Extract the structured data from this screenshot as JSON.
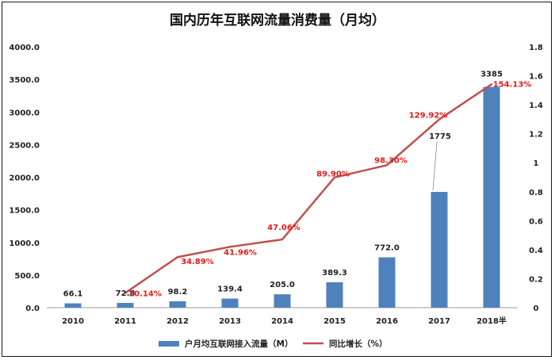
{
  "chart_data": {
    "type": "bar",
    "title": "国内历年互联网流量消费量（月均）",
    "categories": [
      "2010",
      "2011",
      "2012",
      "2013",
      "2014",
      "2015",
      "2016",
      "2017",
      "2018半"
    ],
    "series": [
      {
        "name": "户月均互联网接入流量（M）",
        "type": "bar",
        "axis": "left",
        "color": "#4f81bd",
        "values": [
          66.1,
          72.8,
          98.2,
          139.4,
          205.0,
          389.3,
          772.0,
          1775,
          3385
        ],
        "labels": [
          "66.1",
          "72.8",
          "98.2",
          "139.4",
          "205.0",
          "389.3",
          "772.0",
          "1775",
          "3385"
        ]
      },
      {
        "name": "同比增长（%）",
        "type": "line",
        "axis": "right",
        "color": "#c0504d",
        "values": [
          null,
          0.1014,
          0.3489,
          0.4196,
          0.4706,
          0.899,
          0.983,
          1.2992,
          1.5413
        ],
        "labels": [
          null,
          "10.14%",
          "34.89%",
          "41.96%",
          "47.06%",
          "89.90%",
          "98.30%",
          "129.92%",
          "154.13%"
        ]
      }
    ],
    "y_left": {
      "ylim": [
        0,
        4000
      ],
      "ticks": [
        0,
        500,
        1000,
        1500,
        2000,
        2500,
        3000,
        3500,
        4000
      ],
      "tick_labels": [
        "0.0",
        "500.0",
        "1000.0",
        "1500.0",
        "2000.0",
        "2500.0",
        "3000.0",
        "3500.0",
        "4000.0"
      ]
    },
    "y_right": {
      "ylim": [
        0,
        1.8
      ],
      "ticks": [
        0,
        0.2,
        0.4,
        0.6,
        0.8,
        1.0,
        1.2,
        1.4,
        1.6,
        1.8
      ],
      "tick_labels": [
        "0",
        "0.2",
        "0.4",
        "0.6",
        "0.8",
        "1",
        "1.2",
        "1.4",
        "1.6",
        "1.8"
      ]
    },
    "grid": false,
    "legend_position": "bottom",
    "label_color": "#e31a1c"
  }
}
